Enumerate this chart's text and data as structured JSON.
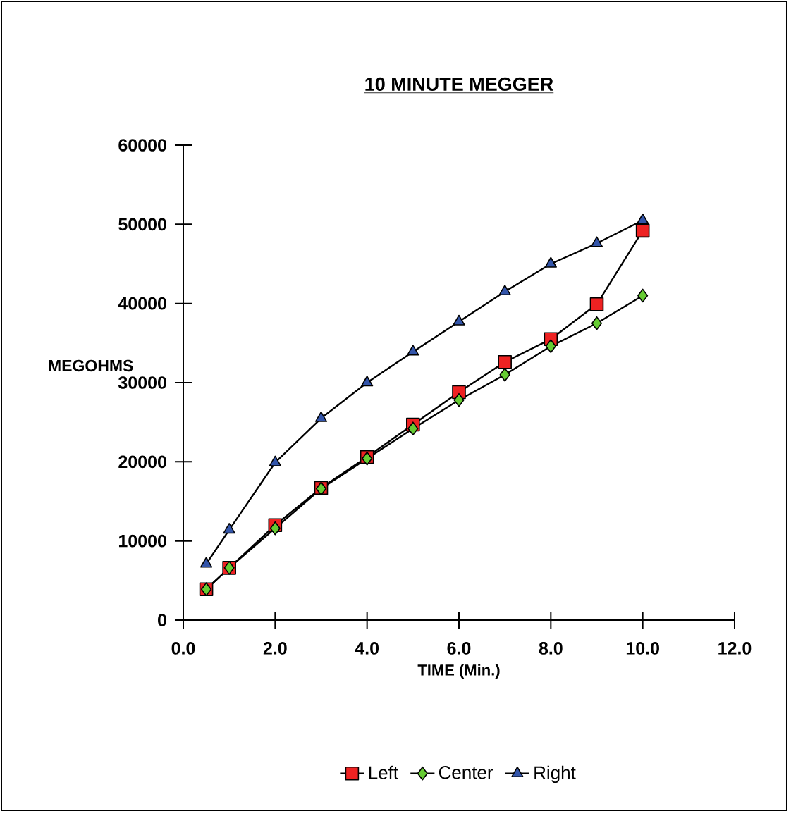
{
  "chart_data": {
    "type": "line",
    "title": "10 MINUTE MEGGER",
    "xlabel": "TIME (Min.)",
    "ylabel": "MEGOHMS",
    "x": [
      0.5,
      1,
      2,
      3,
      4,
      5,
      6,
      7,
      8,
      9,
      10
    ],
    "series": [
      {
        "name": "Left",
        "color": "#ee2222",
        "marker": "square",
        "values": [
          3900,
          6600,
          12000,
          16700,
          20600,
          24700,
          28800,
          32600,
          35500,
          39900,
          49200
        ]
      },
      {
        "name": "Center",
        "color": "#66cc33",
        "marker": "diamond",
        "values": [
          3900,
          6600,
          11600,
          16600,
          20400,
          24200,
          27800,
          31000,
          34600,
          37500,
          41000
        ]
      },
      {
        "name": "Right",
        "color": "#3355aa",
        "marker": "triangle",
        "values": [
          7100,
          11400,
          19900,
          25500,
          30000,
          33900,
          37700,
          41500,
          45000,
          47600,
          50500
        ]
      }
    ],
    "xlim": [
      0,
      12
    ],
    "xticks": [
      {
        "value": 0,
        "label": "0.0"
      },
      {
        "value": 2,
        "label": "2.0"
      },
      {
        "value": 4,
        "label": "4.0"
      },
      {
        "value": 6,
        "label": "6.0"
      },
      {
        "value": 8,
        "label": "8.0"
      },
      {
        "value": 10,
        "label": "10.0"
      },
      {
        "value": 12,
        "label": "12.0"
      }
    ],
    "ylim": [
      0,
      60000
    ],
    "yticks": [
      0,
      10000,
      20000,
      30000,
      40000,
      50000,
      60000
    ],
    "grid": false,
    "legend": "bottom",
    "line_style": "solid"
  }
}
